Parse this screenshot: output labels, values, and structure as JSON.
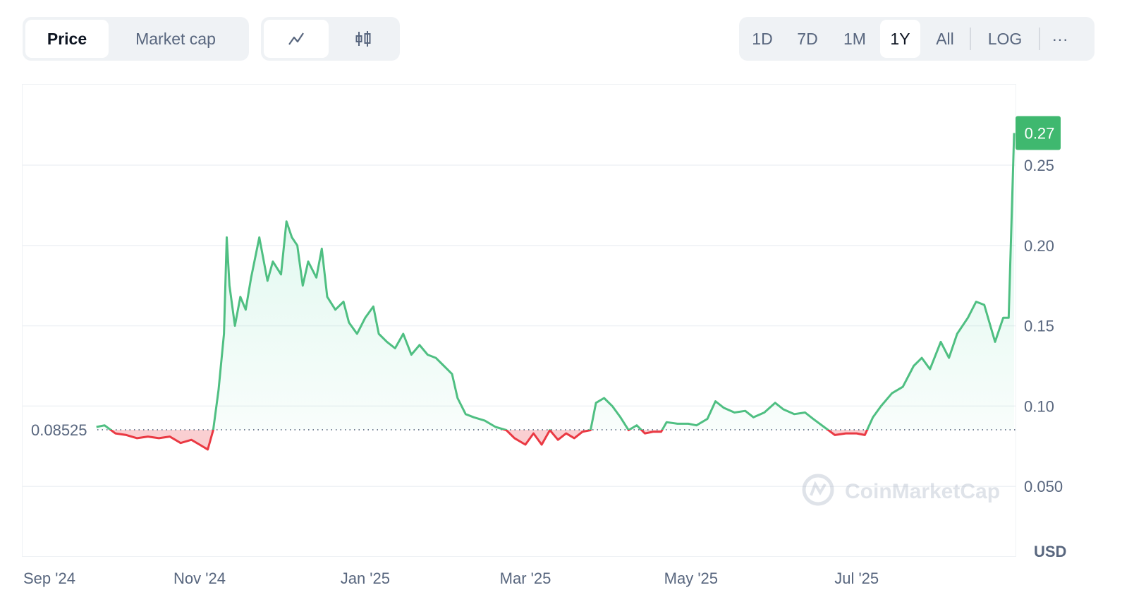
{
  "toolbar": {
    "type_tabs": [
      {
        "label": "Price",
        "active": true
      },
      {
        "label": "Market cap",
        "active": false
      }
    ],
    "view_icons": [
      {
        "icon": "line-chart-icon",
        "active": true
      },
      {
        "icon": "candlestick-icon",
        "active": false
      }
    ],
    "ranges": [
      {
        "label": "1D"
      },
      {
        "label": "7D"
      },
      {
        "label": "1M"
      },
      {
        "label": "1Y",
        "active": true
      },
      {
        "label": "All"
      }
    ],
    "log_label": "LOG",
    "more_label": "···"
  },
  "colors": {
    "up": "#16c784",
    "line_up": "#4fbf82",
    "down": "#ea3943",
    "current_tag": "#3fb86f"
  },
  "chart_data": {
    "type": "line",
    "currency": "USD",
    "baseline": 0.08525,
    "baseline_label": "0.08525",
    "current_value_label": "0.27",
    "watermark": "CoinMarketCap",
    "ylim": [
      0.03,
      0.29
    ],
    "y_ticks": [
      0.25,
      0.2,
      0.15,
      0.1,
      0.05
    ],
    "y_tick_labels": [
      "0.25",
      "0.20",
      "0.15",
      "0.10",
      "0.050"
    ],
    "x_ticks": [
      "2024-09-01",
      "2024-11-01",
      "2025-01-01",
      "2025-03-01",
      "2025-05-01",
      "2025-07-01"
    ],
    "x_tick_labels": [
      "Sep '24",
      "Nov '24",
      "Jan '25",
      "Mar '25",
      "May '25",
      "Jul '25"
    ],
    "grid": true,
    "series": [
      {
        "points": [
          [
            "2024-09-24",
            0.087
          ],
          [
            "2024-09-27",
            0.088
          ],
          [
            "2024-10-01",
            0.083
          ],
          [
            "2024-10-05",
            0.082
          ],
          [
            "2024-10-09",
            0.08
          ],
          [
            "2024-10-13",
            0.081
          ],
          [
            "2024-10-17",
            0.08
          ],
          [
            "2024-10-21",
            0.081
          ],
          [
            "2024-10-25",
            0.077
          ],
          [
            "2024-10-29",
            0.079
          ],
          [
            "2024-11-01",
            0.076
          ],
          [
            "2024-11-04",
            0.073
          ],
          [
            "2024-11-06",
            0.085
          ],
          [
            "2024-11-08",
            0.11
          ],
          [
            "2024-11-10",
            0.145
          ],
          [
            "2024-11-11",
            0.205
          ],
          [
            "2024-11-12",
            0.175
          ],
          [
            "2024-11-14",
            0.15
          ],
          [
            "2024-11-16",
            0.168
          ],
          [
            "2024-11-18",
            0.16
          ],
          [
            "2024-11-20",
            0.18
          ],
          [
            "2024-11-23",
            0.205
          ],
          [
            "2024-11-26",
            0.178
          ],
          [
            "2024-11-28",
            0.19
          ],
          [
            "2024-12-01",
            0.182
          ],
          [
            "2024-12-03",
            0.215
          ],
          [
            "2024-12-05",
            0.205
          ],
          [
            "2024-12-07",
            0.2
          ],
          [
            "2024-12-09",
            0.175
          ],
          [
            "2024-12-11",
            0.19
          ],
          [
            "2024-12-14",
            0.18
          ],
          [
            "2024-12-16",
            0.198
          ],
          [
            "2024-12-18",
            0.168
          ],
          [
            "2024-12-21",
            0.16
          ],
          [
            "2024-12-24",
            0.165
          ],
          [
            "2024-12-26",
            0.152
          ],
          [
            "2024-12-29",
            0.145
          ],
          [
            "2025-01-01",
            0.155
          ],
          [
            "2025-01-04",
            0.162
          ],
          [
            "2025-01-06",
            0.145
          ],
          [
            "2025-01-09",
            0.14
          ],
          [
            "2025-01-12",
            0.136
          ],
          [
            "2025-01-15",
            0.145
          ],
          [
            "2025-01-18",
            0.132
          ],
          [
            "2025-01-21",
            0.138
          ],
          [
            "2025-01-24",
            0.132
          ],
          [
            "2025-01-27",
            0.13
          ],
          [
            "2025-01-30",
            0.125
          ],
          [
            "2025-02-02",
            0.12
          ],
          [
            "2025-02-04",
            0.105
          ],
          [
            "2025-02-07",
            0.095
          ],
          [
            "2025-02-10",
            0.093
          ],
          [
            "2025-02-14",
            0.091
          ],
          [
            "2025-02-18",
            0.087
          ],
          [
            "2025-02-22",
            0.085
          ],
          [
            "2025-02-25",
            0.08
          ],
          [
            "2025-03-01",
            0.076
          ],
          [
            "2025-03-04",
            0.083
          ],
          [
            "2025-03-07",
            0.076
          ],
          [
            "2025-03-10",
            0.085
          ],
          [
            "2025-03-13",
            0.079
          ],
          [
            "2025-03-16",
            0.083
          ],
          [
            "2025-03-19",
            0.08
          ],
          [
            "2025-03-22",
            0.084
          ],
          [
            "2025-03-25",
            0.085
          ],
          [
            "2025-03-27",
            0.102
          ],
          [
            "2025-03-30",
            0.105
          ],
          [
            "2025-04-02",
            0.1
          ],
          [
            "2025-04-05",
            0.093
          ],
          [
            "2025-04-08",
            0.085
          ],
          [
            "2025-04-11",
            0.088
          ],
          [
            "2025-04-14",
            0.083
          ],
          [
            "2025-04-17",
            0.084
          ],
          [
            "2025-04-20",
            0.084
          ],
          [
            "2025-04-22",
            0.09
          ],
          [
            "2025-04-26",
            0.089
          ],
          [
            "2025-04-30",
            0.089
          ],
          [
            "2025-05-03",
            0.088
          ],
          [
            "2025-05-07",
            0.092
          ],
          [
            "2025-05-10",
            0.103
          ],
          [
            "2025-05-13",
            0.099
          ],
          [
            "2025-05-17",
            0.096
          ],
          [
            "2025-05-21",
            0.097
          ],
          [
            "2025-05-24",
            0.093
          ],
          [
            "2025-05-28",
            0.096
          ],
          [
            "2025-06-01",
            0.102
          ],
          [
            "2025-06-04",
            0.098
          ],
          [
            "2025-06-08",
            0.095
          ],
          [
            "2025-06-12",
            0.096
          ],
          [
            "2025-06-15",
            0.092
          ],
          [
            "2025-06-19",
            0.087
          ],
          [
            "2025-06-23",
            0.082
          ],
          [
            "2025-06-27",
            0.083
          ],
          [
            "2025-07-01",
            0.083
          ],
          [
            "2025-07-04",
            0.082
          ],
          [
            "2025-07-07",
            0.093
          ],
          [
            "2025-07-10",
            0.1
          ],
          [
            "2025-07-14",
            0.108
          ],
          [
            "2025-07-18",
            0.112
          ],
          [
            "2025-07-22",
            0.125
          ],
          [
            "2025-07-25",
            0.13
          ],
          [
            "2025-07-28",
            0.123
          ],
          [
            "2025-08-01",
            0.14
          ],
          [
            "2025-08-04",
            0.13
          ],
          [
            "2025-08-07",
            0.145
          ],
          [
            "2025-08-11",
            0.155
          ],
          [
            "2025-08-14",
            0.165
          ],
          [
            "2025-08-17",
            0.163
          ],
          [
            "2025-08-21",
            0.14
          ],
          [
            "2025-08-24",
            0.155
          ],
          [
            "2025-08-26",
            0.155
          ],
          [
            "2025-08-28",
            0.27
          ]
        ]
      }
    ]
  }
}
